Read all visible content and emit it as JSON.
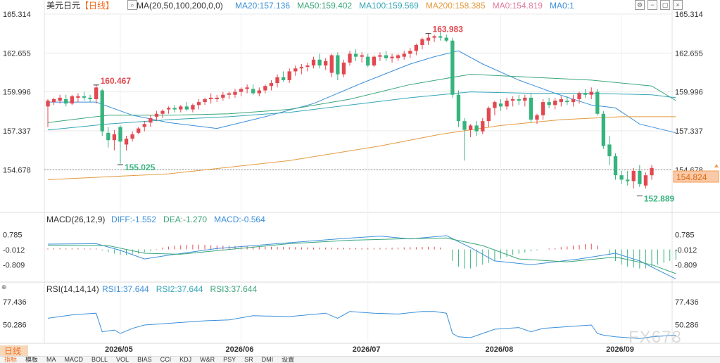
{
  "header": {
    "symbol": "美元日元",
    "period_tag": "【日线】",
    "ma_label": "MA(20,50,100,200,0,0)",
    "ma_values": [
      {
        "text": "MA20:157.136",
        "color": "#3b8fd9"
      },
      {
        "text": "MA50:159.402",
        "color": "#3aa67a"
      },
      {
        "text": "MA100:159.569",
        "color": "#35a6b8"
      },
      {
        "text": "MA200:158.385",
        "color": "#e39a3e"
      },
      {
        "text": "MA0:154.819",
        "color": "#e07a9a"
      },
      {
        "text": "MA0:1",
        "color": "#3b8fd9"
      }
    ]
  },
  "toolbar_icons": [
    "settings-icon",
    "minimize-icon",
    "restore-icon",
    "close-icon"
  ],
  "macd_header": {
    "label": "MACD(26,12,9)",
    "values": [
      {
        "text": "DIFF:-1.552",
        "color": "#3b8fd9"
      },
      {
        "text": "DEA:-1.270",
        "color": "#3aa67a"
      },
      {
        "text": "MACD:-0.564",
        "color": "#3b8fd9"
      }
    ]
  },
  "rsi_header": {
    "label": "RSI(14,14,14)",
    "values": [
      {
        "text": "RSI1:37.644",
        "color": "#3b8fd9"
      },
      {
        "text": "RSI2:37.644",
        "color": "#35a6b8"
      },
      {
        "text": "RSI3:37.644",
        "color": "#3aa67a"
      }
    ]
  },
  "period_button": "日线",
  "watermark": "FX678",
  "bottom_tabs": [
    {
      "label": "指标",
      "active": true
    },
    {
      "label": "模板",
      "active": false
    },
    {
      "label": "MA",
      "active": false
    },
    {
      "label": "MACD",
      "active": false
    },
    {
      "label": "BOLL",
      "active": false
    },
    {
      "label": "VOL",
      "active": false
    },
    {
      "label": "BIAS",
      "active": false
    },
    {
      "label": "CCI",
      "active": false
    },
    {
      "label": "KDJ",
      "active": false
    },
    {
      "label": "W&R",
      "active": false
    },
    {
      "label": "PSY",
      "active": false
    },
    {
      "label": "SR",
      "active": false
    },
    {
      "label": "DMI",
      "active": false
    },
    {
      "label": "设置",
      "active": false
    }
  ],
  "colors": {
    "up": "#e24850",
    "down": "#37b37e",
    "grid": "#e8e8e8",
    "price_tag_bg": "#f9c9a8",
    "price_tag_border": "#f59c55",
    "price_tag_text": "#e06a10",
    "high_label": "#e24850",
    "low_label": "#37b37e"
  },
  "chart_data": {
    "type": "candlestick",
    "y_ticks": [
      "165.314",
      "162.655",
      "159.996",
      "157.337",
      "154.678"
    ],
    "ylim": [
      152.0,
      165.314
    ],
    "current_price": "154.824",
    "current_line_value": 154.678,
    "annotations": [
      {
        "text": "160.467",
        "index": 8,
        "value": 160.467,
        "kind": "high"
      },
      {
        "text": "155.025",
        "index": 12,
        "value": 155.025,
        "kind": "low"
      },
      {
        "text": "163.983",
        "index": 63,
        "value": 163.983,
        "kind": "high"
      },
      {
        "text": "152.889",
        "index": 98,
        "value": 152.889,
        "kind": "low"
      }
    ],
    "dates": [
      {
        "label": "2026/05",
        "index": 12
      },
      {
        "label": "2026/06",
        "index": 32
      },
      {
        "label": "2026/07",
        "index": 53
      },
      {
        "label": "2026/08",
        "index": 75
      },
      {
        "label": "2026/09",
        "index": 95
      }
    ],
    "candles": [
      [
        159.0,
        159.5,
        157.6,
        159.4
      ],
      [
        159.3,
        159.6,
        159.1,
        159.5
      ],
      [
        159.4,
        159.8,
        159.2,
        159.6
      ],
      [
        159.5,
        159.8,
        159.0,
        159.2
      ],
      [
        159.2,
        159.8,
        159.1,
        159.7
      ],
      [
        159.6,
        159.9,
        159.3,
        159.7
      ],
      [
        159.7,
        160.0,
        159.4,
        159.6
      ],
      [
        159.6,
        159.8,
        159.3,
        159.5
      ],
      [
        159.5,
        160.5,
        159.2,
        160.3
      ],
      [
        160.1,
        160.2,
        157.0,
        157.3
      ],
      [
        157.2,
        157.6,
        156.2,
        156.7
      ],
      [
        156.7,
        157.4,
        156.0,
        157.1
      ],
      [
        157.6,
        157.7,
        155.1,
        156.6
      ],
      [
        156.4,
        157.0,
        156.0,
        156.8
      ],
      [
        156.8,
        157.3,
        156.6,
        157.1
      ],
      [
        157.2,
        157.6,
        157.1,
        157.5
      ],
      [
        157.6,
        158.0,
        157.3,
        157.8
      ],
      [
        157.9,
        158.4,
        157.6,
        158.2
      ],
      [
        158.3,
        158.7,
        158.0,
        158.5
      ],
      [
        158.5,
        158.8,
        158.2,
        158.7
      ],
      [
        158.8,
        159.0,
        158.5,
        158.9
      ],
      [
        158.9,
        159.1,
        158.6,
        158.8
      ],
      [
        158.8,
        159.1,
        158.6,
        159.0
      ],
      [
        159.0,
        159.3,
        158.7,
        158.8
      ],
      [
        158.8,
        159.2,
        158.6,
        159.1
      ],
      [
        159.1,
        159.5,
        158.8,
        159.3
      ],
      [
        159.3,
        159.6,
        159.1,
        159.5
      ],
      [
        159.5,
        159.9,
        159.2,
        159.6
      ],
      [
        159.5,
        159.8,
        159.3,
        159.6
      ],
      [
        159.6,
        160.0,
        159.4,
        159.8
      ],
      [
        159.8,
        160.0,
        159.5,
        159.9
      ],
      [
        159.8,
        160.2,
        159.6,
        160.0
      ],
      [
        160.0,
        160.3,
        159.7,
        160.2
      ],
      [
        160.2,
        160.5,
        159.9,
        160.3
      ],
      [
        160.2,
        160.5,
        159.8,
        159.9
      ],
      [
        159.9,
        160.3,
        159.7,
        160.1
      ],
      [
        160.1,
        160.5,
        159.9,
        160.4
      ],
      [
        160.4,
        160.8,
        160.1,
        160.6
      ],
      [
        160.6,
        161.2,
        160.3,
        161.0
      ],
      [
        161.0,
        161.4,
        160.7,
        160.8
      ],
      [
        160.8,
        161.6,
        160.6,
        161.4
      ],
      [
        161.4,
        161.8,
        161.1,
        161.6
      ],
      [
        161.6,
        161.9,
        161.2,
        161.7
      ],
      [
        161.7,
        162.0,
        161.4,
        161.8
      ],
      [
        161.8,
        162.4,
        161.6,
        162.2
      ],
      [
        162.2,
        162.6,
        161.6,
        161.8
      ],
      [
        161.8,
        162.3,
        161.5,
        162.1
      ],
      [
        161.3,
        162.6,
        161.0,
        162.5
      ],
      [
        162.5,
        162.7,
        160.8,
        161.2
      ],
      [
        161.2,
        162.2,
        161.0,
        162.0
      ],
      [
        162.0,
        162.8,
        161.8,
        162.6
      ],
      [
        162.6,
        162.9,
        162.1,
        162.4
      ],
      [
        162.4,
        162.7,
        162.0,
        162.5
      ],
      [
        162.4,
        162.6,
        161.7,
        161.8
      ],
      [
        161.8,
        162.5,
        161.7,
        162.4
      ],
      [
        162.4,
        162.7,
        162.1,
        162.5
      ],
      [
        162.5,
        162.8,
        162.1,
        162.3
      ],
      [
        162.3,
        162.6,
        162.0,
        162.4
      ],
      [
        162.3,
        162.6,
        162.1,
        162.5
      ],
      [
        162.4,
        162.8,
        162.2,
        162.6
      ],
      [
        162.6,
        163.0,
        162.3,
        162.8
      ],
      [
        162.8,
        163.3,
        162.5,
        163.2
      ],
      [
        163.2,
        163.7,
        162.9,
        163.6
      ],
      [
        163.5,
        164.0,
        163.2,
        163.7
      ],
      [
        163.7,
        163.9,
        163.4,
        163.8
      ],
      [
        163.8,
        164.1,
        163.5,
        163.7
      ],
      [
        163.7,
        163.9,
        163.4,
        163.5
      ],
      [
        163.5,
        163.7,
        159.6,
        159.8
      ],
      [
        159.8,
        160.1,
        157.6,
        158.0
      ],
      [
        158.0,
        158.2,
        155.3,
        157.4
      ],
      [
        157.4,
        157.8,
        156.9,
        157.7
      ],
      [
        157.7,
        158.0,
        157.0,
        157.3
      ],
      [
        157.3,
        158.2,
        157.1,
        158.0
      ],
      [
        158.0,
        159.0,
        157.6,
        158.9
      ],
      [
        158.9,
        159.4,
        158.4,
        159.3
      ],
      [
        159.2,
        159.5,
        158.7,
        159.0
      ],
      [
        159.0,
        159.6,
        158.8,
        159.4
      ],
      [
        159.4,
        159.7,
        159.0,
        159.5
      ],
      [
        159.5,
        159.8,
        159.1,
        159.4
      ],
      [
        159.4,
        159.8,
        159.0,
        159.6
      ],
      [
        159.6,
        159.9,
        157.9,
        158.1
      ],
      [
        158.1,
        158.5,
        157.8,
        158.4
      ],
      [
        158.4,
        159.5,
        158.1,
        159.3
      ],
      [
        159.3,
        159.6,
        158.9,
        159.1
      ],
      [
        159.1,
        159.6,
        158.8,
        159.4
      ],
      [
        159.3,
        159.7,
        159.0,
        159.5
      ],
      [
        159.4,
        159.7,
        159.1,
        159.3
      ],
      [
        159.3,
        159.8,
        159.0,
        159.5
      ],
      [
        159.5,
        160.0,
        159.2,
        159.9
      ],
      [
        159.9,
        160.2,
        159.6,
        159.8
      ],
      [
        159.8,
        160.3,
        159.5,
        160.0
      ],
      [
        160.0,
        160.2,
        158.4,
        158.5
      ],
      [
        158.5,
        158.7,
        156.1,
        156.3
      ],
      [
        156.4,
        157.0,
        155.0,
        155.6
      ],
      [
        155.6,
        155.8,
        154.0,
        154.3
      ],
      [
        154.3,
        154.6,
        153.7,
        154.0
      ],
      [
        154.0,
        154.6,
        153.6,
        153.9
      ],
      [
        153.9,
        154.8,
        153.4,
        154.6
      ],
      [
        154.6,
        155.0,
        153.5,
        153.7
      ],
      [
        153.6,
        154.5,
        153.4,
        154.3
      ],
      [
        154.3,
        155.0,
        154.0,
        154.8
      ]
    ],
    "ma_series": [
      {
        "name": "MA20",
        "color": "#3b8fd9",
        "points": [
          [
            0,
            159.3
          ],
          [
            8,
            159.3
          ],
          [
            14,
            158.4
          ],
          [
            20,
            157.9
          ],
          [
            28,
            157.5
          ],
          [
            36,
            158.3
          ],
          [
            44,
            159.2
          ],
          [
            52,
            160.6
          ],
          [
            60,
            161.9
          ],
          [
            64,
            162.4
          ],
          [
            68,
            162.8
          ],
          [
            72,
            161.9
          ],
          [
            78,
            160.8
          ],
          [
            84,
            159.9
          ],
          [
            90,
            159.1
          ],
          [
            94,
            158.9
          ],
          [
            98,
            157.8
          ],
          [
            104,
            157.2
          ]
        ]
      },
      {
        "name": "MA50",
        "color": "#3aa67a",
        "points": [
          [
            0,
            157.9
          ],
          [
            10,
            158.4
          ],
          [
            20,
            158.4
          ],
          [
            30,
            158.5
          ],
          [
            40,
            158.8
          ],
          [
            50,
            159.5
          ],
          [
            60,
            160.5
          ],
          [
            70,
            161.2
          ],
          [
            80,
            161.0
          ],
          [
            90,
            160.8
          ],
          [
            100,
            160.4
          ],
          [
            104,
            159.4
          ]
        ]
      },
      {
        "name": "MA100",
        "color": "#35a6b8",
        "points": [
          [
            0,
            157.4
          ],
          [
            10,
            157.8
          ],
          [
            20,
            158.1
          ],
          [
            30,
            158.3
          ],
          [
            40,
            158.6
          ],
          [
            50,
            159.1
          ],
          [
            60,
            159.6
          ],
          [
            70,
            160.0
          ],
          [
            80,
            159.9
          ],
          [
            90,
            159.9
          ],
          [
            100,
            159.8
          ],
          [
            104,
            159.6
          ]
        ]
      },
      {
        "name": "MA200",
        "color": "#e39a3e",
        "points": [
          [
            0,
            154.0
          ],
          [
            20,
            154.4
          ],
          [
            40,
            155.3
          ],
          [
            55,
            156.3
          ],
          [
            65,
            157.1
          ],
          [
            75,
            157.7
          ],
          [
            85,
            158.1
          ],
          [
            95,
            158.3
          ],
          [
            104,
            158.3
          ]
        ]
      }
    ],
    "macd": {
      "y_ticks": [
        "0.785",
        "-0.012",
        "-0.809"
      ],
      "ylim": [
        -1.6,
        1.2
      ],
      "diff": [
        [
          0,
          0.28
        ],
        [
          8,
          0.3
        ],
        [
          12,
          -0.05
        ],
        [
          16,
          -0.5
        ],
        [
          20,
          -0.3
        ],
        [
          28,
          0.05
        ],
        [
          38,
          0.3
        ],
        [
          48,
          0.55
        ],
        [
          55,
          0.7
        ],
        [
          60,
          0.55
        ],
        [
          66,
          0.72
        ],
        [
          70,
          0.1
        ],
        [
          74,
          -0.6
        ],
        [
          80,
          -0.8
        ],
        [
          88,
          -0.5
        ],
        [
          94,
          -0.2
        ],
        [
          98,
          -0.6
        ],
        [
          104,
          -1.55
        ]
      ],
      "dea": [
        [
          0,
          0.22
        ],
        [
          10,
          0.2
        ],
        [
          16,
          -0.2
        ],
        [
          22,
          -0.25
        ],
        [
          30,
          0.0
        ],
        [
          40,
          0.3
        ],
        [
          50,
          0.48
        ],
        [
          58,
          0.55
        ],
        [
          66,
          0.6
        ],
        [
          72,
          0.2
        ],
        [
          78,
          -0.5
        ],
        [
          86,
          -0.65
        ],
        [
          94,
          -0.4
        ],
        [
          100,
          -0.8
        ],
        [
          104,
          -1.27
        ]
      ],
      "hist": [
        0.05,
        0.06,
        0.07,
        0.05,
        0.06,
        0.07,
        0.06,
        0.04,
        0.05,
        -0.05,
        -0.15,
        -0.22,
        -0.28,
        -0.3,
        -0.28,
        -0.22,
        -0.15,
        -0.08,
        0.02,
        0.1,
        0.15,
        0.2,
        0.22,
        0.24,
        0.25,
        0.25,
        0.24,
        0.22,
        0.2,
        0.2,
        0.19,
        0.18,
        0.18,
        0.17,
        0.16,
        0.15,
        0.14,
        0.14,
        0.13,
        0.13,
        0.12,
        0.12,
        0.11,
        0.11,
        0.1,
        0.1,
        0.1,
        0.1,
        0.09,
        0.09,
        0.08,
        0.08,
        0.08,
        0.08,
        0.08,
        0.08,
        0.08,
        0.09,
        0.1,
        0.11,
        0.12,
        0.12,
        0.13,
        0.14,
        0.14,
        0.1,
        0.0,
        -0.6,
        -0.9,
        -1.0,
        -1.0,
        -0.9,
        -0.8,
        -0.7,
        -0.6,
        -0.5,
        -0.4,
        -0.3,
        -0.22,
        -0.16,
        -0.1,
        -0.05,
        0.0,
        0.05,
        0.08,
        0.12,
        0.15,
        0.2,
        0.24,
        0.28,
        0.3,
        0.2,
        0.0,
        -0.3,
        -0.6,
        -0.8,
        -0.9,
        -0.95,
        -1.0,
        -1.0,
        -0.9,
        -0.8,
        -0.7,
        -0.6,
        -0.55
      ]
    },
    "rsi": {
      "y_ticks": [
        "77.436",
        "50.286"
      ],
      "ylim": [
        30,
        85
      ],
      "points": [
        [
          0,
          58
        ],
        [
          4,
          62
        ],
        [
          8,
          64
        ],
        [
          9,
          42
        ],
        [
          11,
          44
        ],
        [
          12,
          40
        ],
        [
          14,
          46
        ],
        [
          16,
          50
        ],
        [
          20,
          52
        ],
        [
          26,
          55
        ],
        [
          30,
          56
        ],
        [
          34,
          61
        ],
        [
          40,
          60
        ],
        [
          46,
          64
        ],
        [
          48,
          58
        ],
        [
          50,
          66
        ],
        [
          54,
          64
        ],
        [
          58,
          63
        ],
        [
          62,
          66
        ],
        [
          64,
          66
        ],
        [
          66,
          64
        ],
        [
          67,
          40
        ],
        [
          68,
          36
        ],
        [
          70,
          35
        ],
        [
          72,
          40
        ],
        [
          74,
          45
        ],
        [
          78,
          47
        ],
        [
          80,
          42
        ],
        [
          82,
          46
        ],
        [
          86,
          48
        ],
        [
          90,
          50
        ],
        [
          91,
          40
        ],
        [
          92,
          38
        ],
        [
          94,
          36
        ],
        [
          96,
          35
        ],
        [
          98,
          34
        ],
        [
          100,
          36
        ],
        [
          104,
          38
        ]
      ]
    }
  }
}
